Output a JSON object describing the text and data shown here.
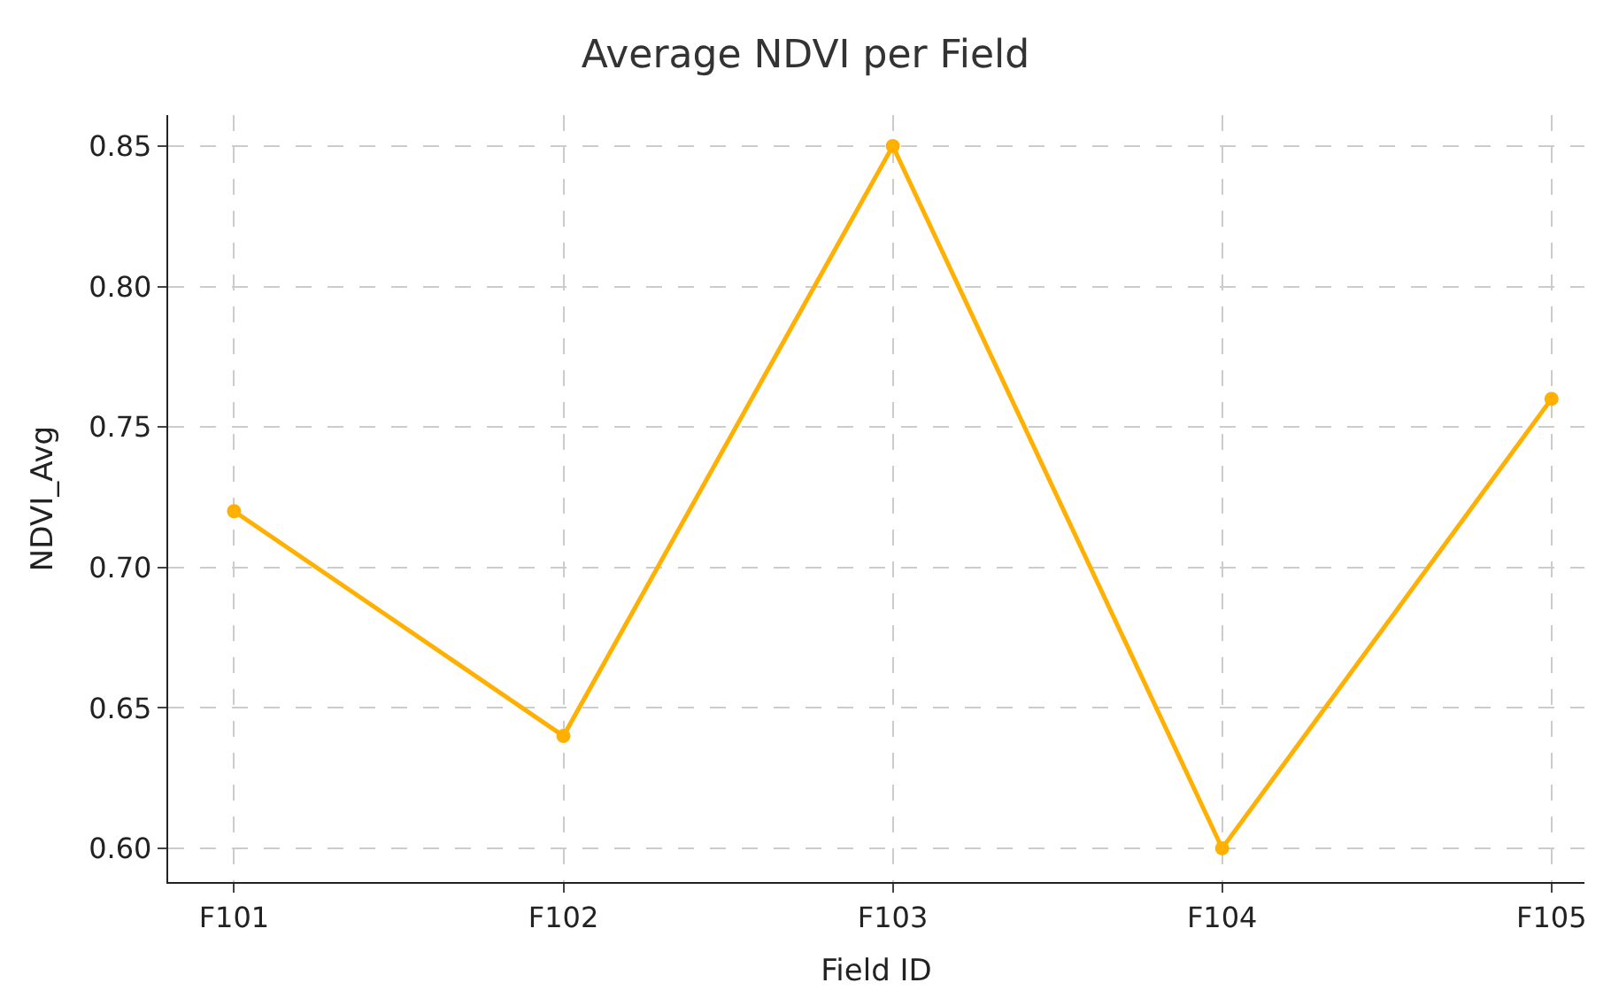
{
  "chart_data": {
    "type": "line",
    "title": "Average NDVI per Field",
    "xlabel": "Field ID",
    "ylabel": "NDVI_Avg",
    "categories": [
      "F101",
      "F102",
      "F103",
      "F104",
      "F105"
    ],
    "series": [
      {
        "color": "#ffb000",
        "values": [
          0.72,
          0.64,
          0.85,
          0.6,
          0.76
        ]
      }
    ],
    "ylim": [
      0.588,
      0.861
    ],
    "yticks": [
      {
        "value": 0.6,
        "label": "0.60"
      },
      {
        "value": 0.65,
        "label": "0.65"
      },
      {
        "value": 0.7,
        "label": "0.70"
      },
      {
        "value": 0.75,
        "label": "0.75"
      },
      {
        "value": 0.8,
        "label": "0.80"
      },
      {
        "value": 0.85,
        "label": "0.85"
      }
    ],
    "grid": true,
    "marker": "circle",
    "line_style": "solid"
  }
}
